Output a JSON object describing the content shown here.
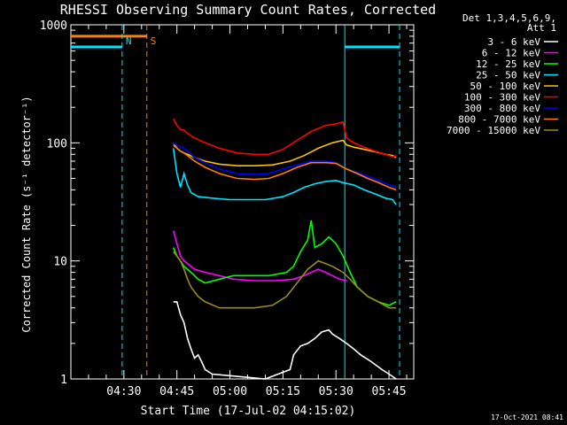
{
  "chart_data": {
    "type": "line",
    "title": "RHESSI Observing Summary Count Rates, Corrected",
    "xlabel": "Start Time (17-Jul-02 04:15:02)",
    "ylabel": "Corrected Count Rate (s⁻¹ detector⁻¹)",
    "yscale": "log",
    "ylim": [
      1,
      1000
    ],
    "xlim_minutes": [
      0,
      97
    ],
    "x_unit": "minutes after 04:15:02",
    "x_ticks": [
      {
        "label": "04:30",
        "t": 15
      },
      {
        "label": "04:45",
        "t": 30
      },
      {
        "label": "05:00",
        "t": 45
      },
      {
        "label": "05:15",
        "t": 60
      },
      {
        "label": "05:30",
        "t": 75
      },
      {
        "label": "05:45",
        "t": 90
      }
    ],
    "y_ticks": [
      {
        "label": "1",
        "v": 1
      },
      {
        "label": "10",
        "v": 10
      },
      {
        "label": "100",
        "v": 100
      },
      {
        "label": "1000",
        "v": 1000
      }
    ],
    "legend": {
      "header": [
        "Det 1,3,4,5,6,9,",
        "Att 1"
      ],
      "position": "right"
    },
    "series": [
      {
        "name": "3 - 6 keV",
        "color": "#ffffff",
        "points": [
          [
            29,
            4.5
          ],
          [
            30,
            4.5
          ],
          [
            31,
            3.5
          ],
          [
            32,
            3.0
          ],
          [
            33,
            2.2
          ],
          [
            34,
            1.8
          ],
          [
            35,
            1.5
          ],
          [
            36,
            1.6
          ],
          [
            37,
            1.4
          ],
          [
            38,
            1.2
          ],
          [
            40,
            1.1
          ],
          [
            55,
            1.0
          ],
          [
            62,
            1.2
          ],
          [
            63,
            1.6
          ],
          [
            65,
            1.9
          ],
          [
            67,
            2.0
          ],
          [
            69,
            2.2
          ],
          [
            71,
            2.5
          ],
          [
            73,
            2.6
          ],
          [
            74,
            2.4
          ],
          [
            76,
            2.2
          ],
          [
            78,
            2.0
          ],
          [
            80,
            1.8
          ],
          [
            82,
            1.6
          ],
          [
            85,
            1.4
          ],
          [
            88,
            1.2
          ],
          [
            90,
            1.1
          ],
          [
            92,
            1.0
          ]
        ]
      },
      {
        "name": "6 - 12 keV",
        "color": "#ff00ff",
        "points": [
          [
            29,
            18
          ],
          [
            30,
            14
          ],
          [
            31,
            11
          ],
          [
            32,
            10
          ],
          [
            33,
            9.5
          ],
          [
            35,
            8.5
          ],
          [
            38,
            8.0
          ],
          [
            42,
            7.5
          ],
          [
            46,
            7.0
          ],
          [
            52,
            6.8
          ],
          [
            58,
            6.8
          ],
          [
            63,
            7.0
          ],
          [
            66,
            7.5
          ],
          [
            68,
            8.0
          ],
          [
            70,
            8.5
          ],
          [
            72,
            8.0
          ],
          [
            74,
            7.5
          ],
          [
            76,
            7.0
          ],
          [
            78,
            6.8
          ]
        ]
      },
      {
        "name": "12 - 25 keV",
        "color": "#00ff00",
        "points": [
          [
            29,
            13
          ],
          [
            30,
            11
          ],
          [
            31,
            10
          ],
          [
            32,
            9.0
          ],
          [
            34,
            8.0
          ],
          [
            36,
            7.0
          ],
          [
            38,
            6.5
          ],
          [
            42,
            7.0
          ],
          [
            46,
            7.5
          ],
          [
            50,
            7.5
          ],
          [
            56,
            7.5
          ],
          [
            61,
            8.0
          ],
          [
            63,
            9.0
          ],
          [
            65,
            12
          ],
          [
            67,
            15
          ],
          [
            68,
            22
          ],
          [
            69,
            13
          ],
          [
            71,
            14
          ],
          [
            73,
            16
          ],
          [
            75,
            14
          ],
          [
            77,
            11
          ],
          [
            79,
            8.0
          ],
          [
            81,
            6.0
          ],
          [
            84,
            5.0
          ],
          [
            87,
            4.5
          ],
          [
            90,
            4.2
          ],
          [
            92,
            4.5
          ]
        ]
      },
      {
        "name": "25 - 50 keV",
        "color": "#00e5ff",
        "points": [
          [
            29,
            90
          ],
          [
            30,
            55
          ],
          [
            31,
            42
          ],
          [
            32,
            55
          ],
          [
            33,
            44
          ],
          [
            34,
            38
          ],
          [
            36,
            35
          ],
          [
            40,
            34
          ],
          [
            45,
            33
          ],
          [
            50,
            33
          ],
          [
            55,
            33
          ],
          [
            60,
            35
          ],
          [
            63,
            38
          ],
          [
            66,
            42
          ],
          [
            69,
            45
          ],
          [
            72,
            47
          ],
          [
            75,
            48
          ],
          [
            77,
            46
          ],
          [
            80,
            44
          ],
          [
            83,
            40
          ],
          [
            86,
            37
          ],
          [
            89,
            34
          ],
          [
            91,
            33
          ],
          [
            92,
            30
          ]
        ]
      },
      {
        "name": "50 - 100 keV",
        "color": "#ffc000",
        "points": [
          [
            29,
            100
          ],
          [
            30,
            90
          ],
          [
            31,
            85
          ],
          [
            32,
            82
          ],
          [
            33,
            80
          ],
          [
            35,
            75
          ],
          [
            38,
            70
          ],
          [
            42,
            66
          ],
          [
            47,
            64
          ],
          [
            52,
            64
          ],
          [
            57,
            65
          ],
          [
            62,
            70
          ],
          [
            66,
            78
          ],
          [
            70,
            90
          ],
          [
            74,
            100
          ],
          [
            77,
            105
          ],
          [
            78,
            96
          ],
          [
            80,
            92
          ],
          [
            83,
            88
          ],
          [
            86,
            84
          ],
          [
            89,
            80
          ],
          [
            91,
            78
          ],
          [
            92,
            75
          ]
        ]
      },
      {
        "name": "100 - 300 keV",
        "color": "#ff0000",
        "points": [
          [
            29,
            160
          ],
          [
            30,
            140
          ],
          [
            31,
            130
          ],
          [
            32,
            128
          ],
          [
            33,
            120
          ],
          [
            35,
            110
          ],
          [
            38,
            100
          ],
          [
            42,
            90
          ],
          [
            47,
            82
          ],
          [
            52,
            80
          ],
          [
            56,
            80
          ],
          [
            60,
            88
          ],
          [
            64,
            105
          ],
          [
            68,
            125
          ],
          [
            72,
            140
          ],
          [
            75,
            145
          ],
          [
            77,
            150
          ],
          [
            78,
            110
          ],
          [
            80,
            100
          ],
          [
            83,
            92
          ],
          [
            86,
            85
          ],
          [
            89,
            80
          ],
          [
            91,
            76
          ],
          [
            92,
            78
          ]
        ]
      },
      {
        "name": "300 - 800 keV",
        "color": "#0000ff",
        "points": [
          [
            29,
            100
          ],
          [
            30,
            95
          ],
          [
            31,
            92
          ],
          [
            32,
            90
          ],
          [
            33,
            85
          ],
          [
            35,
            75
          ],
          [
            38,
            68
          ],
          [
            42,
            60
          ],
          [
            47,
            55
          ],
          [
            52,
            54
          ],
          [
            56,
            55
          ],
          [
            60,
            60
          ],
          [
            64,
            65
          ],
          [
            68,
            70
          ],
          [
            72,
            70
          ],
          [
            75,
            68
          ],
          [
            78,
            60
          ],
          [
            81,
            56
          ],
          [
            84,
            52
          ],
          [
            87,
            48
          ],
          [
            90,
            44
          ],
          [
            92,
            42
          ]
        ]
      },
      {
        "name": "800 - 7000 keV",
        "color": "#ff8000",
        "points": [
          [
            29,
            95
          ],
          [
            30,
            90
          ],
          [
            31,
            85
          ],
          [
            32,
            82
          ],
          [
            33,
            78
          ],
          [
            35,
            70
          ],
          [
            38,
            62
          ],
          [
            42,
            55
          ],
          [
            47,
            50
          ],
          [
            52,
            49
          ],
          [
            56,
            50
          ],
          [
            60,
            55
          ],
          [
            64,
            62
          ],
          [
            68,
            68
          ],
          [
            72,
            68
          ],
          [
            75,
            67
          ],
          [
            78,
            60
          ],
          [
            81,
            55
          ],
          [
            84,
            50
          ],
          [
            87,
            46
          ],
          [
            90,
            42
          ],
          [
            92,
            40
          ]
        ]
      },
      {
        "name": "7000 - 15000 keV",
        "color": "#9a8a1a",
        "points": [
          [
            29,
            12
          ],
          [
            30,
            11
          ],
          [
            31,
            10
          ],
          [
            32,
            8.5
          ],
          [
            33,
            7.0
          ],
          [
            34,
            6.0
          ],
          [
            36,
            5.0
          ],
          [
            38,
            4.5
          ],
          [
            42,
            4.0
          ],
          [
            46,
            4.0
          ],
          [
            52,
            4.0
          ],
          [
            57,
            4.2
          ],
          [
            61,
            5.0
          ],
          [
            64,
            6.5
          ],
          [
            67,
            8.5
          ],
          [
            70,
            10
          ],
          [
            72,
            9.5
          ],
          [
            74,
            9.0
          ],
          [
            77,
            8.0
          ],
          [
            79,
            7.0
          ],
          [
            81,
            6.0
          ],
          [
            84,
            5.0
          ],
          [
            87,
            4.5
          ],
          [
            90,
            4.0
          ],
          [
            92,
            4.0
          ]
        ]
      }
    ],
    "annotations": [
      {
        "label": "N",
        "t": 14.5,
        "color": "#00e5ff"
      },
      {
        "label": "S",
        "t": 21.5,
        "color": "#ff8000"
      }
    ],
    "state_bars": [
      {
        "t0": 0,
        "t1": 21.5,
        "v": 800,
        "color": "#ff8000"
      },
      {
        "t0": 0,
        "t1": 14.5,
        "v": 650,
        "color": "#00e5ff"
      },
      {
        "t0": 77.5,
        "t1": 93,
        "v": 650,
        "color": "#00e5ff"
      }
    ],
    "vlines": [
      {
        "t": 14.5,
        "color": "#00e5ff",
        "dash": true
      },
      {
        "t": 21.5,
        "color": "#ff8000",
        "dash": true
      },
      {
        "t": 77.5,
        "color": "#00e5ff",
        "dash": false
      },
      {
        "t": 93,
        "color": "#00e5ff",
        "dash": true
      }
    ],
    "timestamp": "17-Oct-2021 08:41"
  }
}
